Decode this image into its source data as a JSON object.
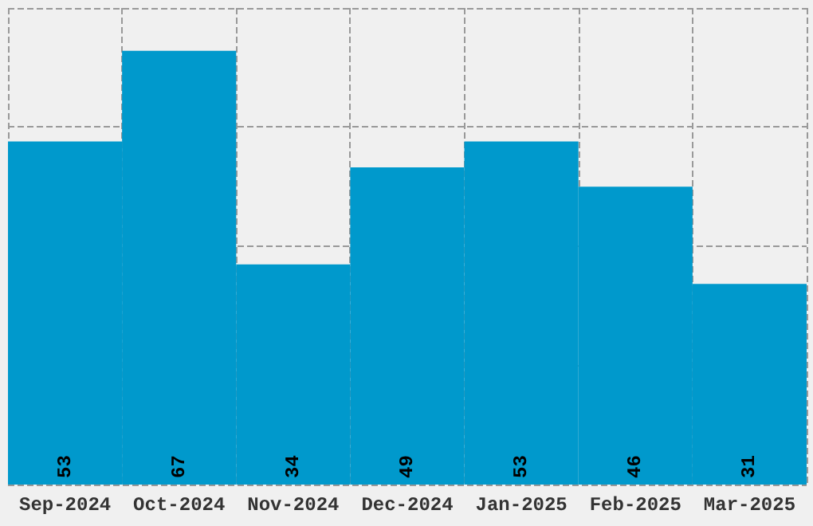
{
  "chart_data": {
    "type": "bar",
    "categories": [
      "Sep-2024",
      "Oct-2024",
      "Nov-2024",
      "Dec-2024",
      "Jan-2025",
      "Feb-2025",
      "Mar-2025"
    ],
    "values": [
      53,
      67,
      34,
      49,
      53,
      46,
      31
    ],
    "color": "#0099cc",
    "data_labels": true,
    "grid": true,
    "tick_labels": "x",
    "ylim": [
      0,
      73.6
    ],
    "yticks": [
      {
        "value": 0,
        "label": null
      },
      {
        "value": 18.4,
        "label": null
      },
      {
        "value": 36.8,
        "label": null
      },
      {
        "value": 55.2,
        "label": null
      },
      {
        "value": 73.6,
        "label": null
      }
    ]
  }
}
